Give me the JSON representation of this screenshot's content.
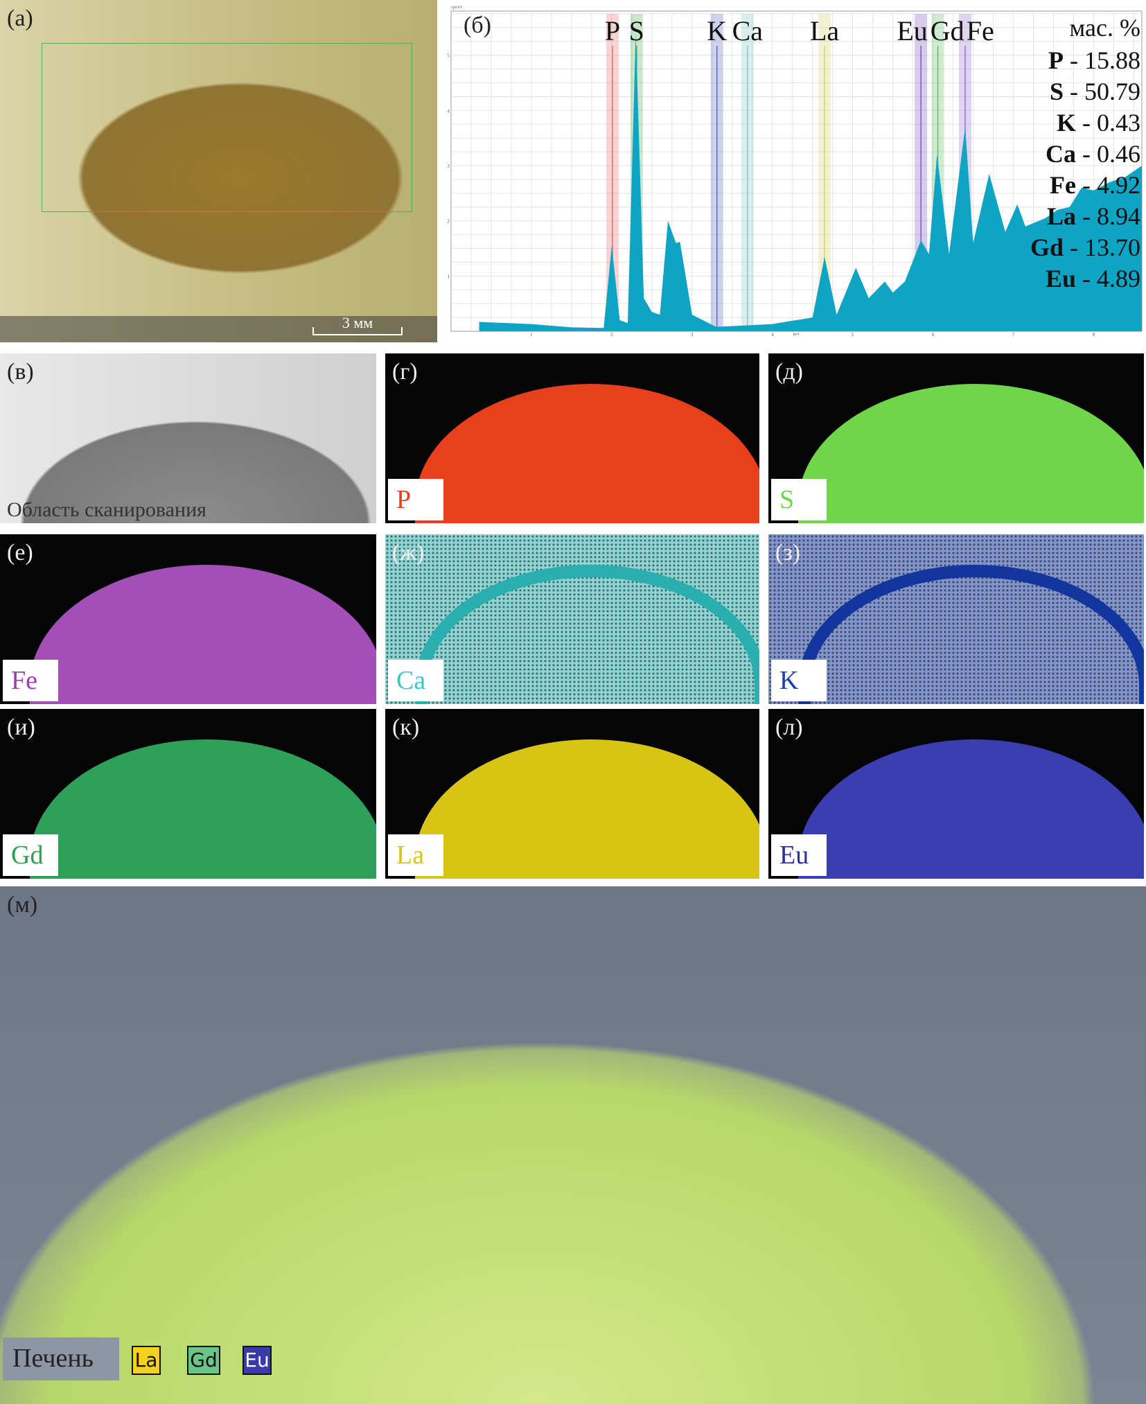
{
  "panel_a": {
    "label": "(а)",
    "scale_bar": "3 мм"
  },
  "panel_b": {
    "label": "(б)",
    "weight_title": "мас. %",
    "weights": [
      {
        "el": "P",
        "val": "15.88"
      },
      {
        "el": "S",
        "val": "50.79"
      },
      {
        "el": "K",
        "val": "0.43"
      },
      {
        "el": "Ca",
        "val": "0.46"
      },
      {
        "el": "Fe",
        "val": "4.92"
      },
      {
        "el": "La",
        "val": "8.94"
      },
      {
        "el": "Gd",
        "val": "13.70"
      },
      {
        "el": "Eu",
        "val": "4.89"
      }
    ]
  },
  "chart_data": {
    "type": "area",
    "xlabel": "keV",
    "ylabel": "cps/eV",
    "xlim": [
      0,
      8.6
    ],
    "ylim": [
      0,
      5.8
    ],
    "xticks": [
      1,
      2,
      3,
      4,
      5,
      6,
      7,
      8
    ],
    "yticks": [
      1,
      2,
      3,
      4,
      5
    ],
    "grid": true,
    "x": [
      0.35,
      1,
      1.5,
      1.9,
      2.0,
      2.1,
      2.2,
      2.3,
      2.4,
      2.5,
      2.6,
      2.7,
      2.8,
      2.85,
      3.0,
      3.3,
      3.6,
      4.0,
      4.5,
      4.65,
      4.8,
      5.04,
      5.2,
      5.4,
      5.5,
      5.65,
      5.85,
      5.95,
      6.05,
      6.2,
      6.4,
      6.5,
      6.7,
      6.9,
      7.05,
      7.15,
      7.4,
      7.55,
      7.7,
      7.85,
      8.0,
      8.2,
      8.4,
      8.6
    ],
    "y": [
      0.17,
      0.13,
      0.07,
      0.06,
      1.55,
      0.2,
      0.15,
      5.4,
      0.6,
      0.35,
      0.3,
      2.0,
      1.6,
      1.62,
      0.3,
      0.08,
      0.1,
      0.13,
      0.25,
      1.35,
      0.3,
      1.15,
      0.6,
      0.9,
      0.7,
      0.9,
      1.65,
      1.4,
      3.2,
      1.4,
      3.7,
      1.6,
      2.85,
      1.8,
      2.3,
      1.9,
      2.05,
      2.2,
      2.25,
      2.6,
      2.55,
      2.7,
      2.8,
      3.0
    ],
    "lines": [
      {
        "name": "P",
        "kev": 2.01,
        "color": "#e57373"
      },
      {
        "name": "S",
        "kev": 2.31,
        "color": "#4caf50"
      },
      {
        "name": "K",
        "kev": 3.31,
        "color": "#5c6bc0"
      },
      {
        "name": "Ca",
        "kev": 3.69,
        "color": "#80cbc4"
      },
      {
        "name": "La",
        "kev": 4.65,
        "color": "#d4d46a"
      },
      {
        "name": "Eu",
        "kev": 5.85,
        "color": "#7e57c2"
      },
      {
        "name": "Gd",
        "kev": 6.06,
        "color": "#66bb6a"
      },
      {
        "name": "Fe",
        "kev": 6.4,
        "color": "#9575cd"
      }
    ],
    "fill_color": "#0fa3c4"
  },
  "panel_v": {
    "label": "(в)",
    "caption": "Область сканирования"
  },
  "maps": [
    {
      "label": "(г)",
      "element": "P",
      "color": "#e8401c",
      "text": "#e8401c"
    },
    {
      "label": "(д)",
      "element": "S",
      "color": "#6fd64a",
      "text": "#6fd64a"
    },
    {
      "label": "(е)",
      "element": "Fe",
      "color": "#a24fb8",
      "text": "#9c3fb5"
    },
    {
      "label": "(ж)",
      "element": "Ca",
      "color": "#2aaeae",
      "text": "#3cc6c6"
    },
    {
      "label": "(з)",
      "element": "K",
      "color": "#12369e",
      "text": "#1c3fb0"
    },
    {
      "label": "(и)",
      "element": "Gd",
      "color": "#2fa05a",
      "text": "#2ea04f"
    },
    {
      "label": "(к)",
      "element": "La",
      "color": "#d8c414",
      "text": "#d8c414"
    },
    {
      "label": "(л)",
      "element": "Eu",
      "color": "#3a3eb0",
      "text": "#2a2fa0"
    }
  ],
  "panel_m": {
    "label": "(м)",
    "caption": "Печень",
    "legend": [
      {
        "el": "La",
        "color": "#f5d21a",
        "text": "#111"
      },
      {
        "el": "Gd",
        "color": "#6cc489",
        "text": "#111"
      },
      {
        "el": "Eu",
        "color": "#3a3aa8",
        "text": "#fff"
      }
    ]
  }
}
